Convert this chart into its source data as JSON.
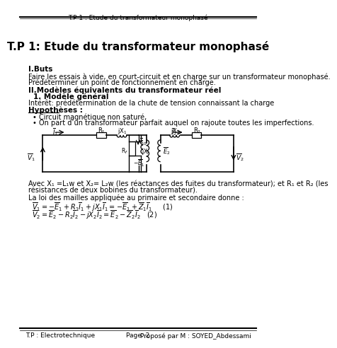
{
  "header_text": "T.P 1 : Etude du transformateur monophasé",
  "title": "T.P 1: Etude du transformateur monophasé",
  "section1_title": "I.Buts",
  "section1_line1": "Faire les essais à vide, en court-circuit et en charge sur un transformateur monophasé.",
  "section1_line2": "Prédéterminer un point de fonctionnement en charge.",
  "section2_title": "II.Modèles équivalents du transformateur réel",
  "section2_sub": "1. Modèle général",
  "interest_text": "Intérêt: prédétermination de la chute de tension connaissant la charge",
  "hyp_title": "Hypothèses :",
  "hyp1": "Circuit magnétique non saturé,",
  "hyp2": "On part d’un transformateur parfait auquel on rajoute toutes les imperfections.",
  "avec_line1": "Avec X₁ =L₁w et X₂= L₂w (les réactances des fuites du transformateur); et R₁ et R₂ (les",
  "avec_line2": "résistances de deux bobines du transformateur).",
  "loi_text": "La loi des mailles appliquée au primaire et secondaire donne :",
  "eq1": "$\\overline{V}_1 = -\\overline{E}_1 + R_1\\overline{I}_1 + jX_1\\overline{I}_1 = -\\overline{E}_1 + \\overline{Z}_1\\overline{I}_1$     (1)",
  "eq2": "$\\overline{V}_2 = \\overline{E}_2 - R_2\\overline{I}_2 - jX_2\\overline{I}_2 = \\overline{E}_2 - \\overline{Z}_2\\overline{I}_2$   (2)",
  "footer_left": "T.P : Electrotechnique",
  "footer_center": "Page: 2",
  "footer_right": "Proposé par M : SOYED_Abdessami",
  "bg_color": "#ffffff",
  "text_color": "#000000"
}
